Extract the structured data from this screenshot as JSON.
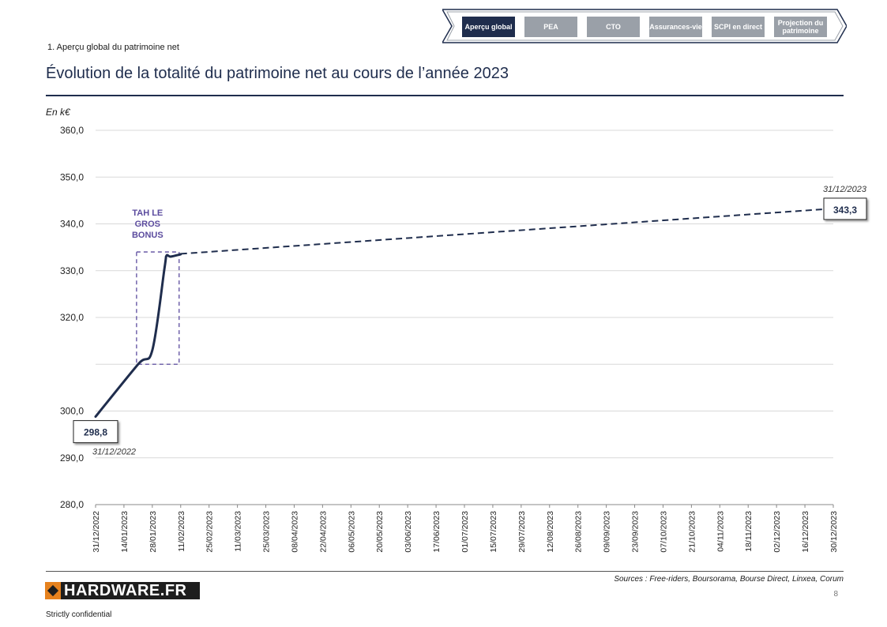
{
  "nav": {
    "tabs": [
      {
        "label": "Aperçu global",
        "active": true
      },
      {
        "label": "PEA",
        "active": false
      },
      {
        "label": "CTO",
        "active": false
      },
      {
        "label": "Assurances-vie",
        "active": false
      },
      {
        "label": "SCPI en direct",
        "active": false
      },
      {
        "label": "Projection du patrimoine",
        "active": false
      }
    ]
  },
  "section_label": "1. Aperçu global du patrimoine net",
  "title": "Évolution de la totalité du patrimoine net au cours de l’année 2023",
  "unit_label": "En k€",
  "chart_data": {
    "type": "line",
    "title": "Évolution de la totalité du patrimoine net au cours de l’année 2023",
    "ylabel": "En k€",
    "ylim": [
      280,
      360
    ],
    "y_ticks": [
      "280,0",
      "290,0",
      "300,0",
      "",
      "320,0",
      "330,0",
      "340,0",
      "350,0",
      "360,0"
    ],
    "y_tick_values": [
      280,
      290,
      300,
      310,
      320,
      330,
      340,
      350,
      360
    ],
    "x_ticks": [
      "31/12/2022",
      "14/01/2023",
      "28/01/2023",
      "11/02/2023",
      "25/02/2023",
      "11/03/2023",
      "25/03/2023",
      "08/04/2023",
      "22/04/2023",
      "06/05/2023",
      "20/05/2023",
      "03/06/2023",
      "17/06/2023",
      "01/07/2023",
      "15/07/2023",
      "29/07/2023",
      "12/08/2023",
      "26/08/2023",
      "09/09/2023",
      "23/09/2023",
      "07/10/2023",
      "21/10/2023",
      "04/11/2023",
      "18/11/2023",
      "02/12/2023",
      "16/12/2023",
      "30/12/2023"
    ],
    "grid": true,
    "series": [
      {
        "style": "solid",
        "color": "#1f2d4d",
        "points": [
          {
            "x": "31/12/2022",
            "y": 298.8
          },
          {
            "x": "21/01/2023",
            "y": 310.0
          },
          {
            "x": "28/01/2023",
            "y": 313.0
          },
          {
            "x": "03/02/2023",
            "y": 330.5
          },
          {
            "x": "04/02/2023",
            "y": 333.2
          },
          {
            "x": "06/02/2023",
            "y": 333.0
          },
          {
            "x": "11/02/2023",
            "y": 333.5
          }
        ]
      },
      {
        "style": "dashed",
        "color": "#1f2d4d",
        "points": [
          {
            "x": "11/02/2023",
            "y": 333.6
          },
          {
            "x": "31/12/2023",
            "y": 343.3
          }
        ]
      }
    ],
    "annotations": {
      "start_value": "298,8",
      "start_date": "31/12/2022",
      "end_value": "343,3",
      "end_date": "31/12/2023",
      "bonus_label": "TAH LE GROS BONUS",
      "bonus_color": "#5b4b9e",
      "bonus_box": {
        "x_from": "21/01/2023",
        "x_to": "11/02/2023",
        "y_from": 310.0,
        "y_to": 334.0
      }
    }
  },
  "footer": {
    "logo_text": "HARDWARE.FR",
    "confidential": "Strictly confidential",
    "sources": "Sources : Free-riders, Boursorama, Bourse Direct, Linxea, Corum",
    "page_number": "8"
  }
}
